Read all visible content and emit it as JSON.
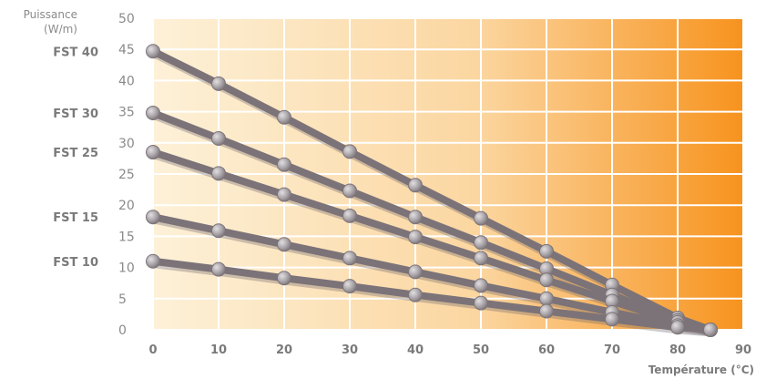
{
  "chart_data": {
    "type": "line",
    "title": "",
    "ylabel_lines": [
      "Puissance",
      "(W/m)"
    ],
    "xlabel": "Température (°C)",
    "xlim": [
      0,
      90
    ],
    "ylim": [
      0,
      50
    ],
    "xticks": [
      0,
      10,
      20,
      30,
      40,
      50,
      60,
      70,
      80,
      90
    ],
    "yticks": [
      0,
      5,
      10,
      15,
      20,
      25,
      30,
      35,
      40,
      45,
      50
    ],
    "grid": true,
    "background": "gradient",
    "colors": {
      "gradient_start": "#fdf1d8",
      "gradient_mid": "#fbc98a",
      "gradient_end": "#f7931e",
      "line": "#7b7378",
      "marker": "#a7a2a6",
      "grid": "#ffffff"
    },
    "series": [
      {
        "name": "FST 40",
        "x": [
          0,
          10,
          20,
          30,
          40,
          50,
          60,
          70,
          80,
          85
        ],
        "y": [
          44.7,
          39.5,
          34.1,
          28.6,
          23.2,
          17.9,
          12.6,
          7.2,
          1.9,
          0
        ]
      },
      {
        "name": "FST 30",
        "x": [
          0,
          10,
          20,
          30,
          40,
          50,
          60,
          70,
          80,
          85
        ],
        "y": [
          34.8,
          30.7,
          26.5,
          22.3,
          18.1,
          14.0,
          9.8,
          5.6,
          1.5,
          0
        ]
      },
      {
        "name": "FST 25",
        "x": [
          0,
          10,
          20,
          30,
          40,
          50,
          60,
          70,
          80,
          85
        ],
        "y": [
          28.5,
          25.1,
          21.7,
          18.3,
          14.9,
          11.5,
          8.0,
          4.6,
          1.2,
          0
        ]
      },
      {
        "name": "FST 15",
        "x": [
          0,
          10,
          20,
          30,
          40,
          50,
          60,
          70,
          80,
          85
        ],
        "y": [
          18.1,
          15.9,
          13.7,
          11.5,
          9.3,
          7.1,
          5.0,
          2.8,
          0.7,
          0
        ]
      },
      {
        "name": "FST 10",
        "x": [
          0,
          10,
          20,
          30,
          40,
          50,
          60,
          70,
          80,
          85
        ],
        "y": [
          11.0,
          9.7,
          8.3,
          7.0,
          5.6,
          4.3,
          3.0,
          1.7,
          0.4,
          0
        ]
      }
    ]
  }
}
